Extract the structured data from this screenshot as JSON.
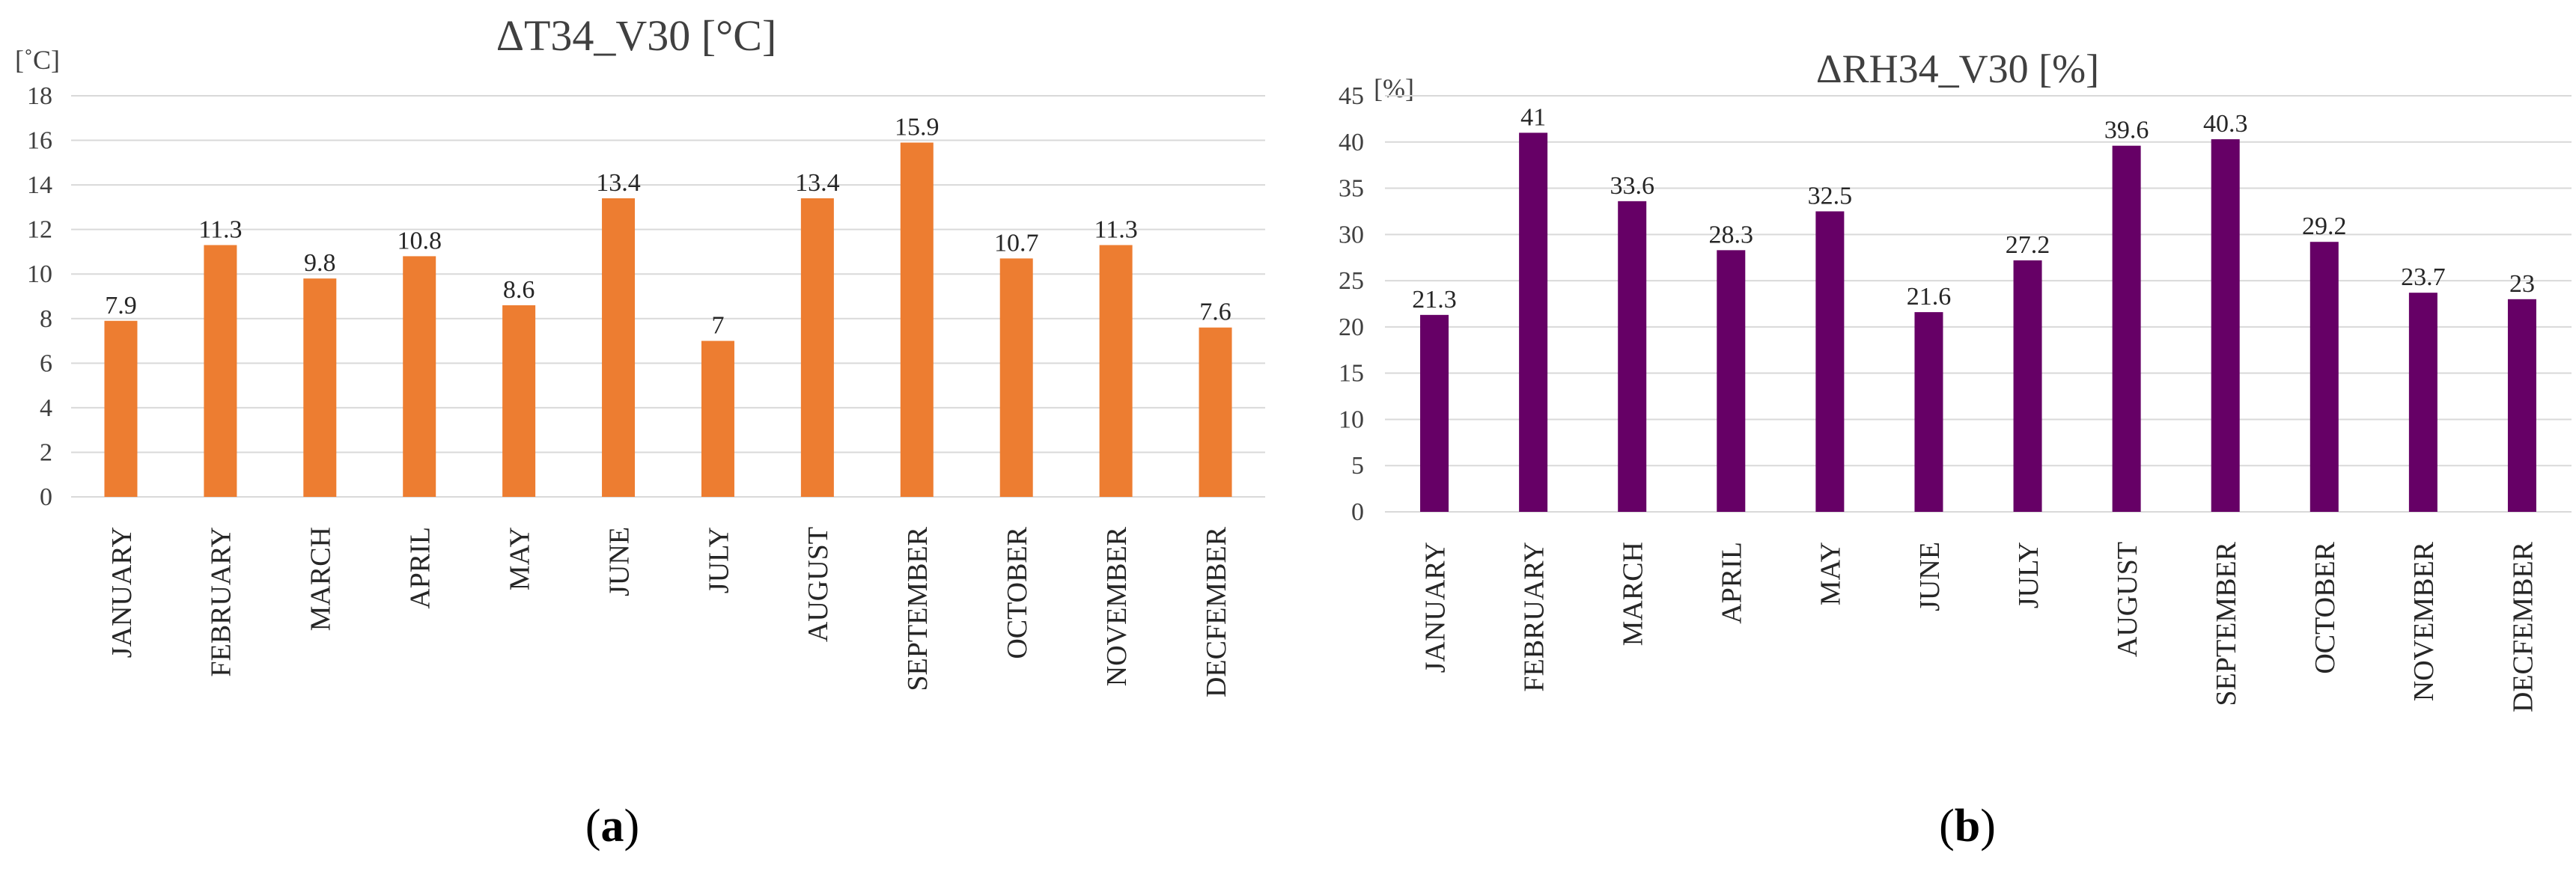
{
  "chart_data": [
    {
      "type": "bar",
      "title": "ΔT34_V30 [°C]",
      "ylabel": "[˚C]",
      "xlabel": "",
      "ylim": [
        0,
        18
      ],
      "ytick_step": 2,
      "grid": true,
      "bar_color": "#ED7D31",
      "categories": [
        "JANUARY",
        "FEBRUARY",
        "MARCH",
        "APRIL",
        "MAY",
        "JUNE",
        "JULY",
        "AUGUST",
        "SEPTEMBER",
        "OCTOBER",
        "NOVEMBER",
        "DECFEMBER"
      ],
      "values": [
        7.9,
        11.3,
        9.8,
        10.8,
        8.6,
        13.4,
        7,
        13.4,
        15.9,
        10.7,
        11.3,
        7.6
      ],
      "caption": "a"
    },
    {
      "type": "bar",
      "title": "ΔRH34_V30 [%]",
      "ylabel": "[%]",
      "xlabel": "",
      "ylim": [
        0,
        45
      ],
      "ytick_step": 5,
      "grid": true,
      "bar_color": "#660066",
      "categories": [
        "JANUARY",
        "FEBRUARY",
        "MARCH",
        "APRIL",
        "MAY",
        "JUNE",
        "JULY",
        "AUGUST",
        "SEPTEMBER",
        "OCTOBER",
        "NOVEMBER",
        "DECFEMBER"
      ],
      "values": [
        21.3,
        41,
        33.6,
        28.3,
        32.5,
        21.6,
        27.2,
        39.6,
        40.3,
        29.2,
        23.7,
        23
      ],
      "caption": "b"
    }
  ]
}
